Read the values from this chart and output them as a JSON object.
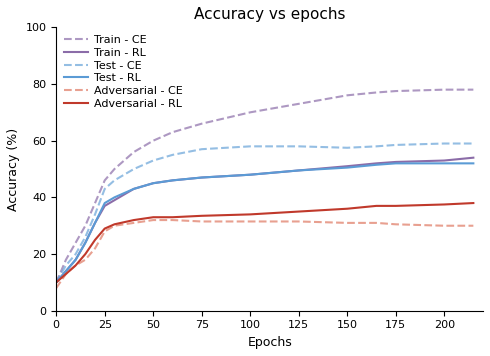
{
  "title": "Accuracy vs epochs",
  "xlabel": "Epochs",
  "ylabel": "Accuracy (%)",
  "ylim": [
    0,
    100
  ],
  "xlim": [
    0,
    220
  ],
  "xticks": [
    0,
    25,
    50,
    75,
    100,
    125,
    150,
    175,
    200
  ],
  "yticks": [
    0,
    20,
    40,
    60,
    80,
    100
  ],
  "epochs": [
    0,
    5,
    10,
    15,
    20,
    25,
    30,
    40,
    50,
    60,
    75,
    100,
    125,
    150,
    165,
    175,
    200,
    215
  ],
  "train_ce": [
    10,
    18,
    24,
    30,
    38,
    46,
    50,
    56,
    60,
    63,
    66,
    70,
    73,
    76,
    77,
    77.5,
    78,
    78
  ],
  "train_rl": [
    10,
    14,
    18,
    24,
    31,
    37,
    39,
    43,
    45,
    46,
    47,
    48,
    49.5,
    51,
    52,
    52.5,
    53,
    54
  ],
  "test_ce": [
    10,
    16,
    20,
    26,
    34,
    43,
    46,
    50,
    53,
    55,
    57,
    58,
    58,
    57.5,
    58,
    58.5,
    59,
    59
  ],
  "test_rl": [
    10,
    14,
    18,
    24,
    31,
    38,
    40,
    43,
    45,
    46,
    47,
    48,
    49.5,
    50.5,
    51.5,
    52,
    52,
    52
  ],
  "adv_ce": [
    8,
    13,
    16,
    18,
    22,
    28,
    30,
    31,
    32,
    32,
    31.5,
    31.5,
    31.5,
    31,
    31,
    30.5,
    30,
    30
  ],
  "adv_rl": [
    10,
    13,
    16,
    20,
    25,
    29,
    30.5,
    32,
    33,
    33,
    33.5,
    34,
    35,
    36,
    37,
    37,
    37.5,
    38
  ],
  "color_purple": "#8B6CA8",
  "color_blue": "#5B9BD5",
  "color_red": "#C0392B",
  "color_adv_ce": "#E8A090",
  "linewidth": 1.5,
  "legend_fontsize": 8,
  "title_fontsize": 11,
  "label_fontsize": 9,
  "tick_fontsize": 8
}
